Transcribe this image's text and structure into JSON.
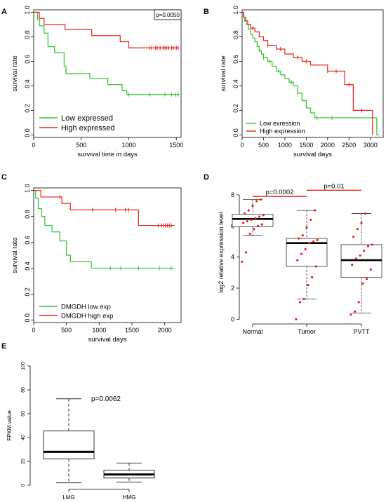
{
  "colors": {
    "red": "#e8221c",
    "green": "#30c230",
    "axis": "#000000",
    "box": "#333333"
  },
  "chart_data": [
    {
      "panel": "A",
      "type": "line",
      "xlabel": "survival time in days",
      "ylabel": "survival rate",
      "xlim": [
        0,
        1550
      ],
      "ylim": [
        -0.02,
        1.02
      ],
      "xticks": [
        0,
        500,
        1000,
        1500
      ],
      "yticks": [
        0.0,
        0.2,
        0.4,
        0.6,
        0.8,
        1.0
      ],
      "annotation": "p=0.0050",
      "legend_position": "bottom-left",
      "series": [
        {
          "name": "Low expressed",
          "color": "green",
          "x": [
            0,
            40,
            60,
            110,
            150,
            220,
            320,
            340,
            590,
            780,
            930,
            980
          ],
          "y": [
            1.0,
            0.94,
            0.89,
            0.83,
            0.72,
            0.67,
            0.56,
            0.5,
            0.46,
            0.41,
            0.36,
            0.33
          ],
          "x_end": 1530,
          "censor": [
            1000,
            1220,
            1380,
            1450,
            1490,
            1520
          ]
        },
        {
          "name": "High expressed",
          "color": "red",
          "x": [
            0,
            60,
            110,
            330,
            610,
            910,
            1000
          ],
          "y": [
            1.0,
            0.95,
            0.9,
            0.86,
            0.81,
            0.76,
            0.71
          ],
          "x_end": 1530,
          "censor": [
            1220,
            1240,
            1280,
            1300,
            1330,
            1360,
            1380,
            1400,
            1420,
            1450,
            1470,
            1500,
            1520
          ]
        }
      ]
    },
    {
      "panel": "B",
      "type": "line",
      "xlabel": "survival days",
      "ylabel": "survival rate",
      "xlim": [
        0,
        3300
      ],
      "ylim": [
        -0.02,
        1.02
      ],
      "xticks": [
        0,
        500,
        1000,
        1500,
        2000,
        2500,
        3000
      ],
      "yticks": [
        0.0,
        0.2,
        0.4,
        0.6,
        0.8,
        1.0
      ],
      "legend_position": "bottom-left",
      "series": [
        {
          "name": "Low exression",
          "color": "green",
          "x": [
            0,
            30,
            60,
            100,
            150,
            200,
            250,
            300,
            350,
            400,
            450,
            500,
            600,
            700,
            800,
            900,
            1000,
            1100,
            1200,
            1300,
            1400,
            1500,
            1600,
            1700,
            3150
          ],
          "y": [
            1.0,
            0.96,
            0.93,
            0.9,
            0.86,
            0.82,
            0.79,
            0.76,
            0.72,
            0.69,
            0.66,
            0.63,
            0.6,
            0.56,
            0.52,
            0.49,
            0.46,
            0.43,
            0.4,
            0.34,
            0.28,
            0.22,
            0.18,
            0.14,
            0.0
          ],
          "x_end": 3200,
          "censor": [
            400,
            500,
            650,
            850,
            1150,
            1300,
            1750,
            2100
          ]
        },
        {
          "name": "High expression",
          "color": "red",
          "x": [
            0,
            40,
            80,
            130,
            200,
            300,
            400,
            500,
            600,
            800,
            1000,
            1200,
            1400,
            1600,
            2000,
            2400,
            2600,
            3050
          ],
          "y": [
            1.0,
            0.96,
            0.93,
            0.9,
            0.87,
            0.84,
            0.8,
            0.77,
            0.73,
            0.7,
            0.66,
            0.63,
            0.6,
            0.57,
            0.52,
            0.41,
            0.2,
            0.0
          ],
          "x_end": 3050,
          "censor": [
            250,
            600,
            900,
            1300,
            1500,
            2000,
            2200,
            2500,
            2800
          ]
        }
      ]
    },
    {
      "panel": "C",
      "type": "line",
      "xlabel": "survival days",
      "ylabel": "survival rate",
      "xlim": [
        0,
        2250
      ],
      "ylim": [
        -0.02,
        1.02
      ],
      "xticks": [
        0,
        500,
        1000,
        1500,
        2000
      ],
      "yticks": [
        0.0,
        0.2,
        0.4,
        0.6,
        0.8,
        1.0
      ],
      "legend_position": "bottom-left",
      "series": [
        {
          "name": "DMGDH low exp",
          "color": "green",
          "x": [
            0,
            30,
            70,
            120,
            170,
            280,
            400,
            500,
            560,
            880
          ],
          "y": [
            1.0,
            0.94,
            0.86,
            0.8,
            0.73,
            0.68,
            0.61,
            0.5,
            0.45,
            0.4
          ],
          "x_end": 2150,
          "censor": [
            1170,
            1330,
            1600,
            1920,
            2100
          ]
        },
        {
          "name": "DMGDH high exp",
          "color": "red",
          "x": [
            0,
            110,
            180,
            430,
            560,
            1600
          ],
          "y": [
            1.0,
            0.95,
            0.95,
            0.9,
            0.85,
            0.73
          ],
          "x_end": 2150,
          "censor": [
            400,
            900,
            1250,
            1400,
            1450,
            1900,
            1950,
            1980,
            2010,
            2040,
            2070,
            2100
          ]
        }
      ]
    },
    {
      "panel": "D",
      "type": "box",
      "ylabel": "log2 relative expression level",
      "categories": [
        "Normal",
        "Tumor",
        "PVTT"
      ],
      "ylim": [
        -0.3,
        8.9
      ],
      "yticks": [
        0,
        2,
        4,
        6,
        8
      ],
      "boxes": [
        {
          "q1": 5.95,
          "median": 6.45,
          "q3": 6.75,
          "whisker_low": 5.4,
          "whisker_high": 7.7
        },
        {
          "q1": 3.4,
          "median": 4.9,
          "q3": 5.2,
          "whisker_low": 1.3,
          "whisker_high": 7.0
        },
        {
          "q1": 2.7,
          "median": 3.8,
          "q3": 4.8,
          "whisker_low": 0.4,
          "whisker_high": 6.8
        }
      ],
      "points": [
        [
          3.7,
          4.3,
          5.5,
          5.8,
          6.0,
          6.1,
          6.2,
          6.3,
          6.4,
          6.5,
          6.6,
          6.7,
          6.8,
          7.0,
          7.3,
          7.6,
          7.7
        ],
        [
          0.0,
          1.1,
          1.3,
          2.2,
          2.7,
          3.4,
          3.8,
          4.2,
          4.5,
          4.9,
          5.0,
          5.1,
          5.2,
          5.4,
          5.9,
          6.4,
          7.0
        ],
        [
          0.3,
          0.5,
          1.1,
          2.3,
          2.6,
          3.2,
          3.5,
          3.9,
          4.1,
          4.4,
          4.7,
          4.8,
          5.3,
          5.8,
          6.2,
          6.8
        ]
      ],
      "comparisons": [
        {
          "from": 0,
          "to": 1,
          "y": 7.9,
          "label": "p=0.0002"
        },
        {
          "from": 1,
          "to": 2,
          "y": 8.3,
          "label": "p=0.01"
        }
      ]
    },
    {
      "panel": "E",
      "type": "box",
      "ylabel": "FPKM value",
      "categories": [
        "LMG",
        "HMG"
      ],
      "ylim": [
        0,
        100
      ],
      "yticks": [
        0,
        20,
        40,
        60,
        80,
        100
      ],
      "boxes": [
        {
          "q1": 22,
          "median": 28,
          "q3": 45.5,
          "whisker_low": 2,
          "whisker_high": 72.5
        },
        {
          "q1": 6,
          "median": 9,
          "q3": 12.5,
          "whisker_low": 2.5,
          "whisker_high": 18.5
        }
      ],
      "annotation": "p=0.0062"
    }
  ]
}
